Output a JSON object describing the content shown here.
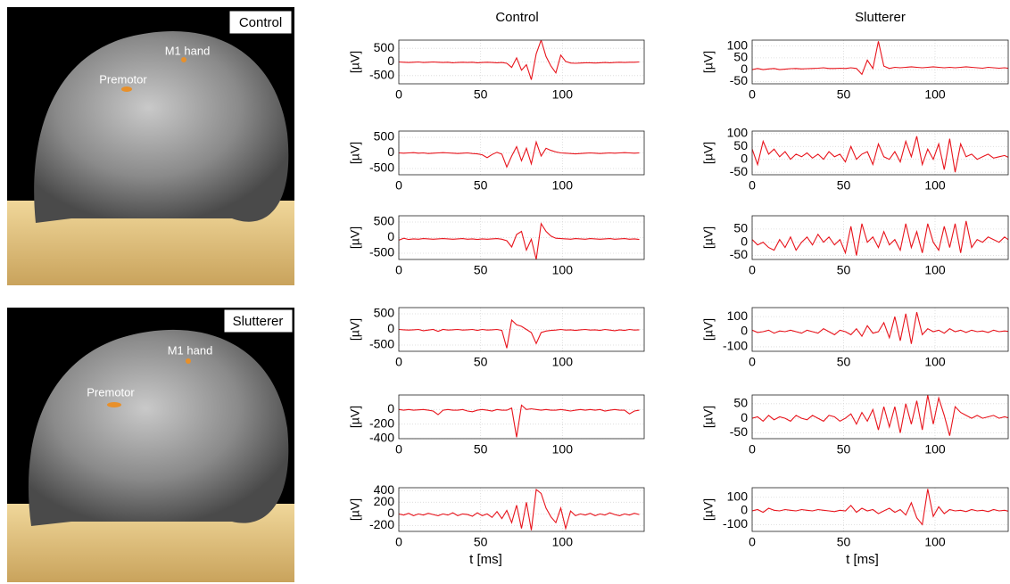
{
  "images": [
    {
      "label": "Control",
      "annotations": [
        "M1 hand",
        "Premotor"
      ]
    },
    {
      "label": "Slutterer",
      "annotations": [
        "M1 hand",
        "Premotor"
      ]
    }
  ],
  "chart_data": [
    {
      "type": "line",
      "title": "Control",
      "ylabel": "[µV]",
      "color": "#e8141c",
      "grid": true,
      "x": [
        0,
        3,
        6,
        9,
        12,
        15,
        18,
        21,
        24,
        27,
        30,
        33,
        36,
        39,
        42,
        45,
        48,
        51,
        54,
        57,
        60,
        63,
        66,
        69,
        72,
        75,
        78,
        81,
        84,
        87,
        90,
        93,
        96,
        99,
        102,
        105,
        108,
        111,
        114,
        117,
        120,
        123,
        126,
        129,
        132,
        135,
        138,
        141,
        144,
        147
      ],
      "values": [
        0,
        -10,
        -20,
        -10,
        0,
        -20,
        -10,
        0,
        -10,
        -20,
        -10,
        -30,
        -20,
        -10,
        -20,
        -10,
        -30,
        -20,
        -10,
        -20,
        -30,
        -20,
        -50,
        -200,
        150,
        -300,
        -100,
        -650,
        300,
        800,
        200,
        -150,
        -400,
        250,
        20,
        -40,
        -50,
        -40,
        -30,
        -30,
        -40,
        -30,
        -20,
        -30,
        -20,
        -10,
        -20,
        -10,
        -10,
        0
      ],
      "xlim": [
        0,
        150
      ],
      "xticks": [
        0,
        50,
        100
      ],
      "ylim": [
        -800,
        800
      ],
      "yticks": [
        500,
        0,
        -500
      ]
    },
    {
      "type": "line",
      "ylabel": "[µV]",
      "color": "#e8141c",
      "grid": true,
      "x": [
        0,
        3,
        6,
        9,
        12,
        15,
        18,
        21,
        24,
        27,
        30,
        33,
        36,
        39,
        42,
        45,
        48,
        51,
        54,
        57,
        60,
        63,
        66,
        69,
        72,
        75,
        78,
        81,
        84,
        87,
        90,
        93,
        96,
        99,
        102,
        105,
        108,
        111,
        114,
        117,
        120,
        123,
        126,
        129,
        132,
        135,
        138,
        141,
        144,
        147
      ],
      "values": [
        0,
        -10,
        0,
        10,
        -10,
        0,
        -20,
        -10,
        0,
        10,
        0,
        -10,
        -20,
        -10,
        0,
        -20,
        -30,
        -60,
        -150,
        -50,
        20,
        -40,
        -450,
        -100,
        200,
        -250,
        150,
        -350,
        350,
        -100,
        150,
        80,
        30,
        0,
        -10,
        -20,
        -30,
        -20,
        -10,
        0,
        -10,
        -20,
        -10,
        0,
        -10,
        0,
        10,
        0,
        -10,
        0
      ],
      "xlim": [
        0,
        150
      ],
      "xticks": [
        0,
        50,
        100
      ],
      "ylim": [
        -700,
        700
      ],
      "yticks": [
        500,
        0,
        -500
      ]
    },
    {
      "type": "line",
      "ylabel": "[µV]",
      "color": "#e8141c",
      "grid": true,
      "x": [
        0,
        3,
        6,
        9,
        12,
        15,
        18,
        21,
        24,
        27,
        30,
        33,
        36,
        39,
        42,
        45,
        48,
        51,
        54,
        57,
        60,
        63,
        66,
        69,
        72,
        75,
        78,
        81,
        84,
        87,
        90,
        93,
        96,
        99,
        102,
        105,
        108,
        111,
        114,
        117,
        120,
        123,
        126,
        129,
        132,
        135,
        138,
        141,
        144,
        147
      ],
      "values": [
        -80,
        -20,
        -60,
        -40,
        -50,
        -30,
        -40,
        -50,
        -40,
        -30,
        -40,
        -50,
        -40,
        -30,
        -50,
        -40,
        -60,
        -40,
        -50,
        -40,
        -30,
        -50,
        -100,
        -300,
        100,
        200,
        -400,
        -50,
        -700,
        450,
        200,
        50,
        -20,
        -30,
        -40,
        -50,
        -30,
        -40,
        -50,
        -30,
        -40,
        -50,
        -40,
        -30,
        -50,
        -40,
        -30,
        -50,
        -40,
        -60
      ],
      "xlim": [
        0,
        150
      ],
      "xticks": [
        0,
        50,
        100
      ],
      "ylim": [
        -700,
        700
      ],
      "yticks": [
        500,
        0,
        -500
      ]
    },
    {
      "type": "line",
      "ylabel": "[µV]",
      "color": "#e8141c",
      "grid": true,
      "x": [
        0,
        3,
        6,
        9,
        12,
        15,
        18,
        21,
        24,
        27,
        30,
        33,
        36,
        39,
        42,
        45,
        48,
        51,
        54,
        57,
        60,
        63,
        66,
        69,
        72,
        75,
        78,
        81,
        84,
        87,
        90,
        93,
        96,
        99,
        102,
        105,
        108,
        111,
        114,
        117,
        120,
        123,
        126,
        129,
        132,
        135,
        138,
        141,
        144,
        147
      ],
      "values": [
        0,
        -10,
        -20,
        -10,
        0,
        -40,
        -20,
        0,
        -60,
        0,
        -20,
        -10,
        0,
        -20,
        -10,
        0,
        -30,
        0,
        -20,
        -10,
        0,
        -30,
        -600,
        300,
        150,
        100,
        0,
        -100,
        -450,
        -100,
        -50,
        -30,
        -20,
        0,
        -20,
        -10,
        -30,
        -10,
        0,
        -20,
        -10,
        -30,
        0,
        -20,
        -40,
        -10,
        -30,
        0,
        -20,
        -10
      ],
      "xlim": [
        0,
        150
      ],
      "xticks": [
        0,
        50,
        100
      ],
      "ylim": [
        -700,
        700
      ],
      "yticks": [
        500,
        0,
        -500
      ]
    },
    {
      "type": "line",
      "ylabel": "[µV]",
      "color": "#e8141c",
      "grid": true,
      "x": [
        0,
        3,
        6,
        9,
        12,
        15,
        18,
        21,
        24,
        27,
        30,
        33,
        36,
        39,
        42,
        45,
        48,
        51,
        54,
        57,
        60,
        63,
        66,
        69,
        72,
        75,
        78,
        81,
        84,
        87,
        90,
        93,
        96,
        99,
        102,
        105,
        108,
        111,
        114,
        117,
        120,
        123,
        126,
        129,
        132,
        135,
        138,
        141,
        144,
        147
      ],
      "values": [
        0,
        -10,
        0,
        -10,
        -5,
        0,
        -10,
        -20,
        -70,
        -10,
        0,
        -10,
        -10,
        0,
        -20,
        -30,
        -10,
        0,
        -10,
        -20,
        0,
        -10,
        -10,
        20,
        -380,
        60,
        0,
        10,
        0,
        -10,
        0,
        -10,
        -10,
        0,
        -10,
        -20,
        -10,
        0,
        -10,
        0,
        -10,
        0,
        -20,
        -10,
        0,
        -10,
        -10,
        -60,
        -20,
        -10
      ],
      "xlim": [
        0,
        150
      ],
      "xticks": [
        0,
        50,
        100
      ],
      "ylim": [
        -400,
        200
      ],
      "yticks": [
        0,
        -200,
        -400
      ]
    },
    {
      "type": "line",
      "ylabel": "[µV]",
      "xlabel": "t [ms]",
      "color": "#e8141c",
      "grid": true,
      "x": [
        0,
        3,
        6,
        9,
        12,
        15,
        18,
        21,
        24,
        27,
        30,
        33,
        36,
        39,
        42,
        45,
        48,
        51,
        54,
        57,
        60,
        63,
        66,
        69,
        72,
        75,
        78,
        81,
        84,
        87,
        90,
        93,
        96,
        99,
        102,
        105,
        108,
        111,
        114,
        117,
        120,
        123,
        126,
        129,
        132,
        135,
        138,
        141,
        144,
        147
      ],
      "values": [
        0,
        -20,
        10,
        -30,
        0,
        -20,
        10,
        -10,
        -30,
        0,
        -20,
        20,
        -30,
        0,
        -10,
        -40,
        20,
        -30,
        0,
        -60,
        40,
        -80,
        60,
        -150,
        150,
        -250,
        200,
        -280,
        420,
        350,
        100,
        -50,
        -150,
        100,
        -250,
        50,
        -30,
        0,
        -20,
        10,
        -30,
        0,
        -20,
        20,
        -10,
        -30,
        0,
        -20,
        10,
        -10
      ],
      "xlim": [
        0,
        150
      ],
      "xticks": [
        0,
        50,
        100
      ],
      "ylim": [
        -300,
        450
      ],
      "yticks": [
        400,
        200,
        0,
        -200
      ]
    },
    {
      "type": "line",
      "title": "Slutterer",
      "ylabel": "[µV]",
      "color": "#e8141c",
      "grid": true,
      "x": [
        0,
        3,
        6,
        9,
        12,
        15,
        18,
        21,
        24,
        27,
        30,
        33,
        36,
        39,
        42,
        45,
        48,
        51,
        54,
        57,
        60,
        63,
        66,
        69,
        72,
        75,
        78,
        81,
        84,
        87,
        90,
        93,
        96,
        99,
        102,
        105,
        108,
        111,
        114,
        117,
        120,
        123,
        126,
        129,
        132,
        135,
        138,
        141
      ],
      "values": [
        0,
        5,
        0,
        3,
        5,
        0,
        2,
        4,
        5,
        3,
        4,
        5,
        6,
        8,
        5,
        5,
        6,
        5,
        8,
        5,
        -20,
        40,
        5,
        120,
        15,
        5,
        10,
        8,
        10,
        12,
        10,
        8,
        10,
        12,
        10,
        8,
        10,
        8,
        10,
        12,
        10,
        8,
        6,
        10,
        8,
        6,
        8,
        5
      ],
      "xlim": [
        0,
        140
      ],
      "xticks": [
        0,
        50,
        100
      ],
      "ylim": [
        -60,
        125
      ],
      "yticks": [
        100,
        50,
        0,
        -50
      ]
    },
    {
      "type": "line",
      "ylabel": "[µV]",
      "color": "#e8141c",
      "grid": true,
      "x": [
        0,
        3,
        6,
        9,
        12,
        15,
        18,
        21,
        24,
        27,
        30,
        33,
        36,
        39,
        42,
        45,
        48,
        51,
        54,
        57,
        60,
        63,
        66,
        69,
        72,
        75,
        78,
        81,
        84,
        87,
        90,
        93,
        96,
        99,
        102,
        105,
        108,
        111,
        114,
        117,
        120,
        123,
        126,
        129,
        132,
        135,
        138,
        141
      ],
      "values": [
        40,
        -20,
        70,
        20,
        40,
        10,
        30,
        0,
        20,
        10,
        25,
        5,
        20,
        0,
        30,
        10,
        20,
        -10,
        50,
        0,
        20,
        30,
        -20,
        60,
        10,
        0,
        30,
        -10,
        70,
        10,
        90,
        -20,
        40,
        0,
        60,
        -40,
        80,
        -50,
        60,
        10,
        20,
        0,
        10,
        20,
        5,
        10,
        15,
        5
      ],
      "xlim": [
        0,
        140
      ],
      "xticks": [
        0,
        50,
        100
      ],
      "ylim": [
        -60,
        110
      ],
      "yticks": [
        100,
        50,
        0,
        -50
      ]
    },
    {
      "type": "line",
      "ylabel": "[µV]",
      "color": "#e8141c",
      "grid": true,
      "x": [
        0,
        3,
        6,
        9,
        12,
        15,
        18,
        21,
        24,
        27,
        30,
        33,
        36,
        39,
        42,
        45,
        48,
        51,
        54,
        57,
        60,
        63,
        66,
        69,
        72,
        75,
        78,
        81,
        84,
        87,
        90,
        93,
        96,
        99,
        102,
        105,
        108,
        111,
        114,
        117,
        120,
        123,
        126,
        129,
        132,
        135,
        138,
        141
      ],
      "values": [
        10,
        -10,
        0,
        -20,
        -30,
        10,
        -20,
        20,
        -30,
        0,
        20,
        -10,
        30,
        0,
        20,
        -10,
        10,
        -40,
        60,
        -50,
        70,
        0,
        20,
        -20,
        40,
        -10,
        10,
        -30,
        70,
        -20,
        40,
        -40,
        70,
        0,
        -30,
        60,
        -20,
        70,
        -40,
        80,
        -20,
        10,
        0,
        20,
        10,
        0,
        20,
        5
      ],
      "xlim": [
        0,
        140
      ],
      "xticks": [
        0,
        50,
        100
      ],
      "ylim": [
        -65,
        100
      ],
      "yticks": [
        50,
        0,
        -50
      ]
    },
    {
      "type": "line",
      "ylabel": "[µV]",
      "color": "#e8141c",
      "grid": true,
      "x": [
        0,
        3,
        6,
        9,
        12,
        15,
        18,
        21,
        24,
        27,
        30,
        33,
        36,
        39,
        42,
        45,
        48,
        51,
        54,
        57,
        60,
        63,
        66,
        69,
        72,
        75,
        78,
        81,
        84,
        87,
        90,
        93,
        96,
        99,
        102,
        105,
        108,
        111,
        114,
        117,
        120,
        123,
        126,
        129,
        132,
        135,
        138,
        141
      ],
      "values": [
        10,
        -5,
        0,
        10,
        -10,
        5,
        0,
        10,
        0,
        -10,
        10,
        0,
        -10,
        20,
        0,
        -20,
        10,
        0,
        -20,
        20,
        -30,
        40,
        -10,
        0,
        60,
        -40,
        100,
        -60,
        120,
        -80,
        130,
        -20,
        20,
        0,
        10,
        -10,
        20,
        0,
        10,
        -5,
        10,
        0,
        5,
        -5,
        10,
        0,
        5,
        0
      ],
      "xlim": [
        0,
        140
      ],
      "xticks": [
        0,
        50,
        100
      ],
      "ylim": [
        -130,
        160
      ],
      "yticks": [
        100,
        0,
        -100
      ]
    },
    {
      "type": "line",
      "ylabel": "[µV]",
      "color": "#e8141c",
      "grid": true,
      "x": [
        0,
        3,
        6,
        9,
        12,
        15,
        18,
        21,
        24,
        27,
        30,
        33,
        36,
        39,
        42,
        45,
        48,
        51,
        54,
        57,
        60,
        63,
        66,
        69,
        72,
        75,
        78,
        81,
        84,
        87,
        90,
        93,
        96,
        99,
        102,
        105,
        108,
        111,
        114,
        117,
        120,
        123,
        126,
        129,
        132,
        135,
        138,
        141
      ],
      "values": [
        0,
        5,
        -10,
        10,
        -5,
        5,
        0,
        -10,
        10,
        0,
        -5,
        10,
        0,
        -10,
        10,
        5,
        -10,
        0,
        15,
        -20,
        20,
        -10,
        30,
        -40,
        40,
        -30,
        40,
        -50,
        50,
        -20,
        60,
        -40,
        80,
        -20,
        70,
        10,
        -60,
        40,
        20,
        10,
        0,
        10,
        0,
        5,
        10,
        0,
        5,
        0
      ],
      "xlim": [
        0,
        140
      ],
      "xticks": [
        0,
        50,
        100
      ],
      "ylim": [
        -70,
        80
      ],
      "yticks": [
        50,
        0,
        -50
      ]
    },
    {
      "type": "line",
      "ylabel": "[µV]",
      "xlabel": "t [ms]",
      "color": "#e8141c",
      "grid": true,
      "x": [
        0,
        3,
        6,
        9,
        12,
        15,
        18,
        21,
        24,
        27,
        30,
        33,
        36,
        39,
        42,
        45,
        48,
        51,
        54,
        57,
        60,
        63,
        66,
        69,
        72,
        75,
        78,
        81,
        84,
        87,
        90,
        93,
        96,
        99,
        102,
        105,
        108,
        111,
        114,
        117,
        120,
        123,
        126,
        129,
        132,
        135,
        138,
        141
      ],
      "values": [
        0,
        10,
        -10,
        20,
        5,
        0,
        10,
        5,
        0,
        10,
        5,
        0,
        10,
        5,
        0,
        -5,
        5,
        0,
        40,
        -10,
        20,
        0,
        10,
        -20,
        0,
        20,
        -10,
        10,
        -30,
        60,
        -50,
        -100,
        160,
        -40,
        30,
        -20,
        10,
        0,
        5,
        -5,
        10,
        0,
        5,
        -5,
        10,
        0,
        5,
        -5
      ],
      "xlim": [
        0,
        140
      ],
      "xticks": [
        0,
        50,
        100
      ],
      "ylim": [
        -150,
        170
      ],
      "yticks": [
        100,
        0,
        -100
      ]
    }
  ]
}
